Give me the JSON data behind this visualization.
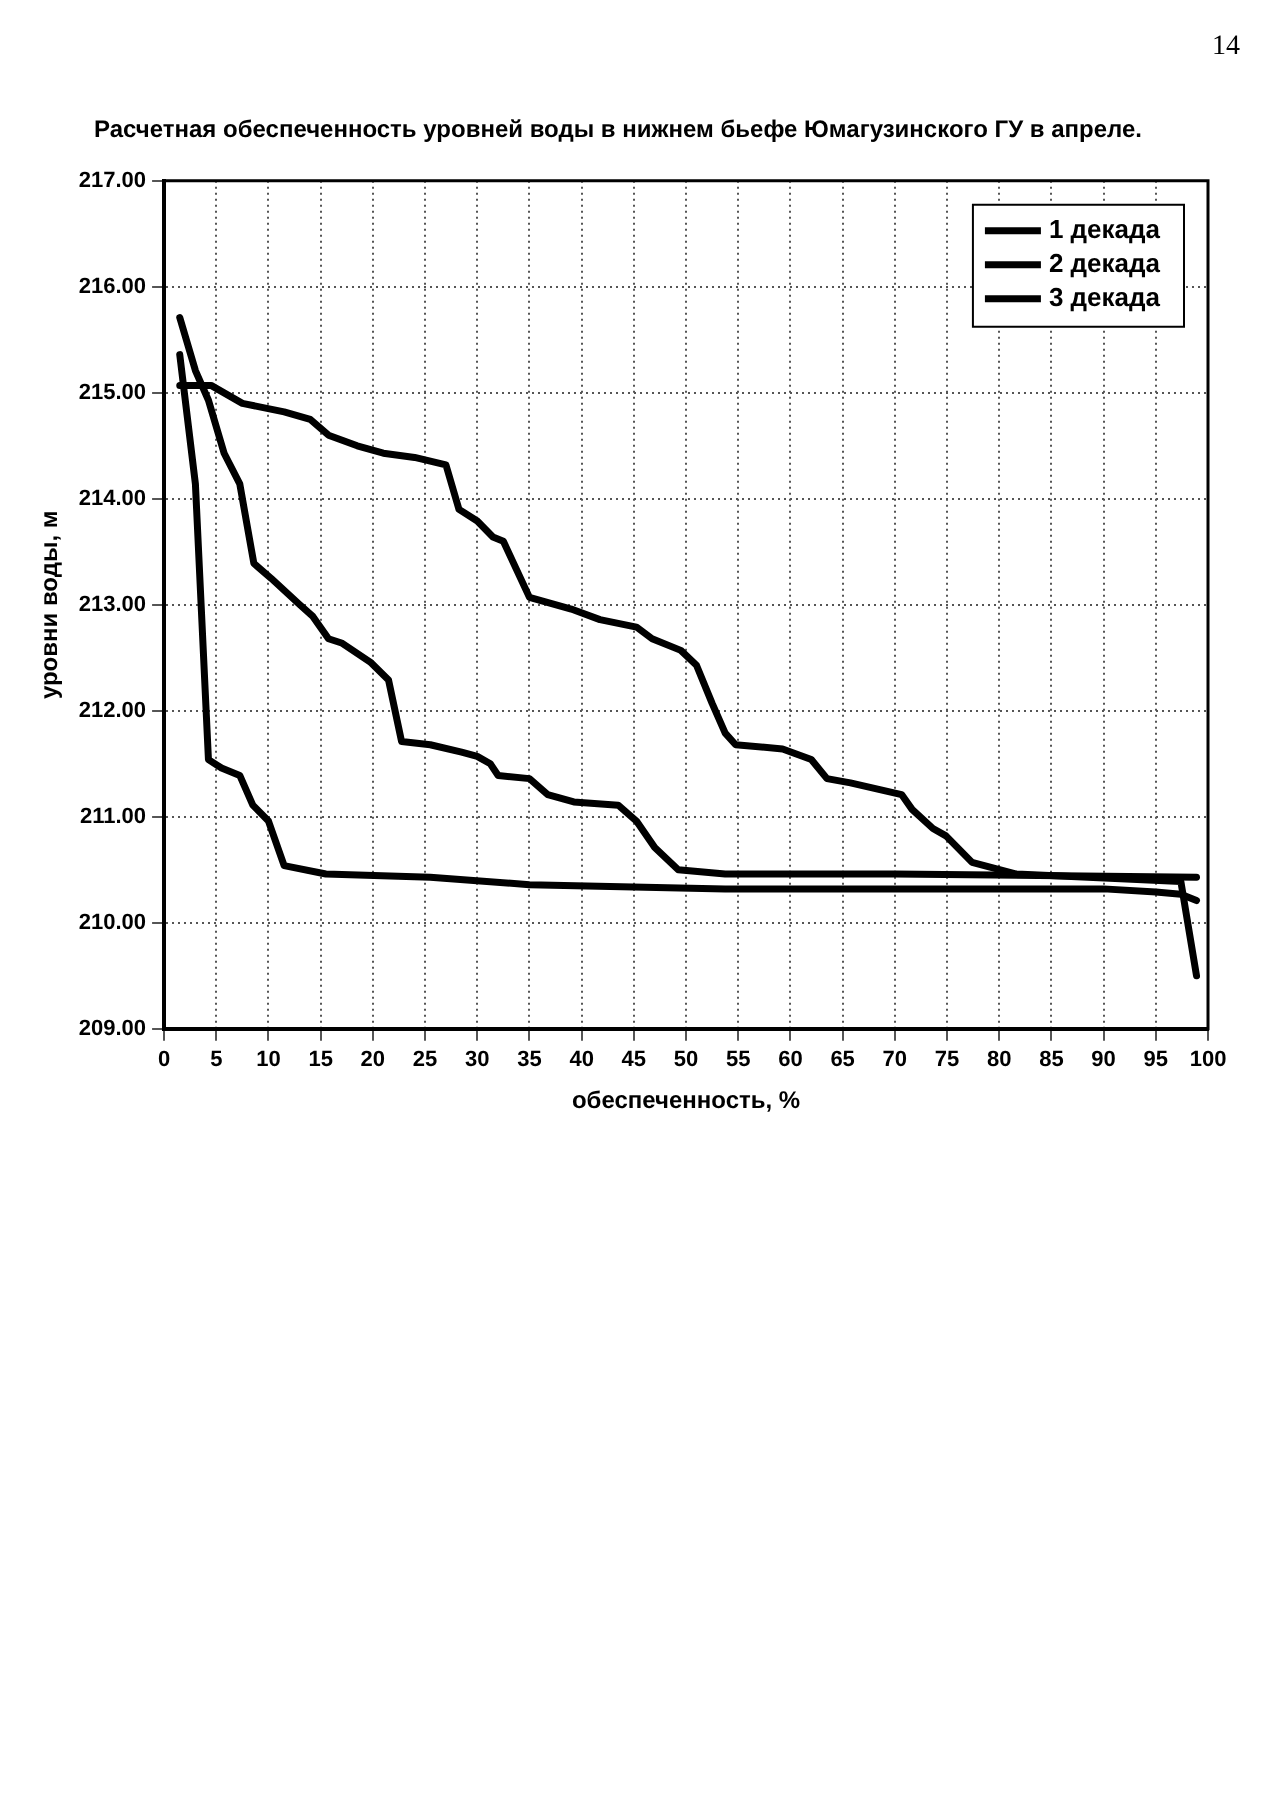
{
  "chart_data": {
    "type": "line",
    "title": "Расчетная обеспеченность уровней воды в нижнем бьефе Юмагузинского ГУ в апреле.",
    "xlabel": "обеспеченность, %",
    "ylabel": "уровни воды, м",
    "annotations": [
      "14"
    ],
    "xlim": [
      0,
      100
    ],
    "xticks": [
      0,
      5,
      10,
      15,
      20,
      25,
      30,
      35,
      40,
      45,
      50,
      55,
      60,
      65,
      70,
      75,
      80,
      85,
      90,
      95,
      100
    ],
    "ylim": [
      209,
      217
    ],
    "yticks": [
      {
        "value": 209,
        "label": "209.00"
      },
      {
        "value": 210,
        "label": "210.00"
      },
      {
        "value": 211,
        "label": "211.00"
      },
      {
        "value": 212,
        "label": "212.00"
      },
      {
        "value": 213,
        "label": "213.00"
      },
      {
        "value": 214,
        "label": "214.00"
      },
      {
        "value": 215,
        "label": "215.00"
      },
      {
        "value": 216,
        "label": "216.00"
      },
      {
        "value": 217,
        "label": "217.00"
      }
    ],
    "grid": true,
    "legend": "top right",
    "marker": "none",
    "line_style": "solid",
    "series": [
      {
        "name": "1 декада",
        "color": "#000000",
        "x": [
          1.5,
          3,
          4.25,
          5.5,
          7.25,
          8.5,
          10,
          11.5,
          15.5,
          25.5,
          35,
          53.75,
          70,
          90,
          95,
          97.4,
          98.9
        ],
        "values": [
          215.36,
          214.14,
          211.54,
          211.46,
          211.39,
          211.11,
          210.96,
          210.54,
          210.46,
          210.43,
          210.36,
          210.32,
          210.32,
          210.32,
          210.29,
          210.27,
          210.21
        ]
      },
      {
        "name": "2 декада",
        "color": "#000000",
        "x": [
          1.5,
          3,
          4.25,
          5.75,
          7.25,
          8.6,
          10.25,
          13,
          14.25,
          15.75,
          17,
          19.75,
          21.5,
          22.75,
          25.5,
          28.5,
          30,
          31.25,
          32,
          35,
          36.75,
          39.25,
          43.5,
          45.25,
          47,
          49.25,
          53.75,
          70,
          98.9
        ],
        "values": [
          215.71,
          215.21,
          214.93,
          214.43,
          214.14,
          213.39,
          213.25,
          213.0,
          212.89,
          212.68,
          212.64,
          212.46,
          212.29,
          211.71,
          211.68,
          211.61,
          211.57,
          211.5,
          211.39,
          211.36,
          211.21,
          211.14,
          211.11,
          210.96,
          210.71,
          210.5,
          210.46,
          210.46,
          210.43
        ]
      },
      {
        "name": "3 декада",
        "color": "#000000",
        "x": [
          1.5,
          4.5,
          7.5,
          11.5,
          14,
          15.75,
          18.5,
          21,
          24,
          27,
          28.25,
          30,
          31.5,
          32.5,
          35,
          39,
          41.75,
          45.25,
          46.75,
          49.5,
          51,
          52.5,
          53.75,
          54.75,
          59.25,
          62,
          63.5,
          65.75,
          70.65,
          71.65,
          73.65,
          74.9,
          77.4,
          81.65,
          97.4,
          98.9
        ],
        "values": [
          215.07,
          215.07,
          214.9,
          214.82,
          214.75,
          214.6,
          214.5,
          214.43,
          214.39,
          214.32,
          213.9,
          213.79,
          213.64,
          213.6,
          213.07,
          212.96,
          212.86,
          212.79,
          212.68,
          212.57,
          212.43,
          212.07,
          211.79,
          211.68,
          211.64,
          211.54,
          211.36,
          211.32,
          211.21,
          211.07,
          210.89,
          210.82,
          210.57,
          210.46,
          210.39,
          209.5
        ]
      }
    ]
  }
}
